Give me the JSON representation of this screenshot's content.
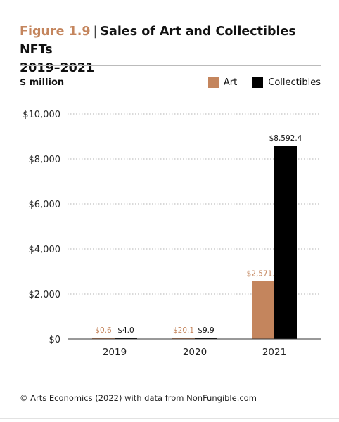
{
  "header": {
    "figure_label": "Figure 1.9",
    "title_text": "Sales of Art and Collectibles NFTs",
    "title_line2": "2019–2021",
    "unit_label": "$ million"
  },
  "legend": [
    {
      "label": "Art",
      "color": "#c4855d"
    },
    {
      "label": "Collectibles",
      "color": "#000000"
    }
  ],
  "chart_data": {
    "type": "bar",
    "categories": [
      "2019",
      "2020",
      "2021"
    ],
    "series": [
      {
        "name": "Art",
        "color": "#c4855d",
        "values": [
          0.6,
          20.1,
          2571.7
        ],
        "labels": [
          "$0.6",
          "$20.1",
          "$2,571.7"
        ]
      },
      {
        "name": "Collectibles",
        "color": "#000000",
        "values": [
          4.0,
          9.9,
          8592.4
        ],
        "labels": [
          "$4.0",
          "$9.9",
          "$8,592.4"
        ]
      }
    ],
    "ylim": [
      0,
      10000
    ],
    "yticks": [
      0,
      2000,
      4000,
      6000,
      8000,
      10000
    ],
    "ytick_labels": [
      "$0",
      "$2,000",
      "$4,000",
      "$6,000",
      "$8,000",
      "$10,000"
    ],
    "grid": true,
    "legend_position": "top-right"
  },
  "footer": {
    "source": "© Arts Economics (2022) with data from NonFungible.com"
  }
}
